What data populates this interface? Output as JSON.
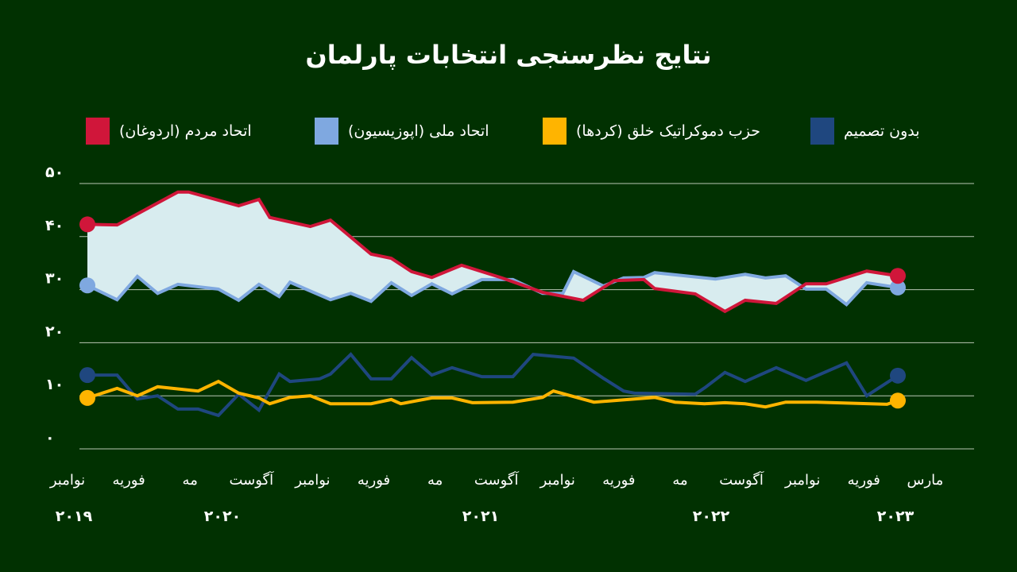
{
  "chart_data": {
    "type": "line",
    "title": "نتایج نظرسنجی انتخابات پارلمان",
    "xlabel": "",
    "ylabel": "",
    "ylim": [
      0,
      50
    ],
    "yticks": [
      "۰",
      "۱۰",
      "۲۰",
      "۳۰",
      "۴۰",
      "۵۰"
    ],
    "ytick_values": [
      0,
      10,
      20,
      30,
      40,
      50
    ],
    "grid": true,
    "legend_position": "top",
    "xticks": [
      "نوامبر",
      "فوریه",
      "مه",
      "آگوست",
      "نوامبر",
      "فوریه",
      "مه",
      "آگوست",
      "نوامبر",
      "فوریه",
      "مه",
      "آگوست",
      "نوامبر",
      "فوریه",
      "مارس"
    ],
    "years": [
      "۲۰۱۹",
      "۲۰۲۰",
      "۲۰۲۱",
      "۲۰۲۲",
      "۲۰۲۳"
    ],
    "fill_between": {
      "series": [
        "اتحاد مردم (اردوغان)",
        "اتحاد ملی (اپوزیسیون)"
      ],
      "color": "#d8ecef"
    },
    "series": [
      {
        "name": "اتحاد مردم (اردوغان)",
        "color": "#d0163a",
        "points": [
          [
            "2019-11-01",
            42.3
          ],
          [
            "2019-12-15",
            42.2
          ],
          [
            "2020-03-15",
            48.4
          ],
          [
            "2020-04-01",
            48.4
          ],
          [
            "2020-06-15",
            45.8
          ],
          [
            "2020-07-15",
            47.0
          ],
          [
            "2020-08-01",
            43.6
          ],
          [
            "2020-10-01",
            41.9
          ],
          [
            "2020-11-01",
            43.1
          ],
          [
            "2021-01-01",
            36.7
          ],
          [
            "2021-02-01",
            35.9
          ],
          [
            "2021-03-01",
            33.4
          ],
          [
            "2021-04-01",
            32.3
          ],
          [
            "2021-05-15",
            34.6
          ],
          [
            "2021-07-15",
            32.2
          ],
          [
            "2021-09-15",
            29.5
          ],
          [
            "2021-11-15",
            28.0
          ],
          [
            "2022-01-01",
            31.7
          ],
          [
            "2022-02-15",
            31.9
          ],
          [
            "2022-03-01",
            30.2
          ],
          [
            "2022-05-01",
            29.2
          ],
          [
            "2022-06-15",
            25.9
          ],
          [
            "2022-07-15",
            28.0
          ],
          [
            "2022-09-01",
            27.4
          ],
          [
            "2022-10-15",
            31.1
          ],
          [
            "2022-11-15",
            31.1
          ],
          [
            "2023-01-15",
            33.5
          ],
          [
            "2023-03-01",
            32.6
          ]
        ]
      },
      {
        "name": "اتحاد ملی (اپوزیسیون)",
        "color": "#7fa8e0",
        "points": [
          [
            "2019-11-01",
            30.8
          ],
          [
            "2019-12-15",
            28.1
          ],
          [
            "2020-01-15",
            32.5
          ],
          [
            "2020-02-15",
            29.3
          ],
          [
            "2020-03-15",
            31.0
          ],
          [
            "2020-05-15",
            30.1
          ],
          [
            "2020-06-15",
            28.0
          ],
          [
            "2020-07-15",
            31.0
          ],
          [
            "2020-08-15",
            28.7
          ],
          [
            "2020-09-01",
            31.4
          ],
          [
            "2020-11-01",
            28.1
          ],
          [
            "2020-12-01",
            29.3
          ],
          [
            "2021-01-01",
            27.8
          ],
          [
            "2021-02-01",
            31.3
          ],
          [
            "2021-03-01",
            28.9
          ],
          [
            "2021-04-01",
            31.1
          ],
          [
            "2021-05-01",
            29.2
          ],
          [
            "2021-06-15",
            31.9
          ],
          [
            "2021-08-01",
            31.9
          ],
          [
            "2021-09-15",
            29.3
          ],
          [
            "2021-10-15",
            29.3
          ],
          [
            "2021-11-01",
            33.4
          ],
          [
            "2021-12-15",
            30.7
          ],
          [
            "2022-01-15",
            32.2
          ],
          [
            "2022-02-15",
            32.3
          ],
          [
            "2022-03-01",
            33.2
          ],
          [
            "2022-06-01",
            32.0
          ],
          [
            "2022-07-15",
            32.9
          ],
          [
            "2022-08-15",
            32.2
          ],
          [
            "2022-09-15",
            32.6
          ],
          [
            "2022-10-15",
            30.1
          ],
          [
            "2022-11-15",
            30.1
          ],
          [
            "2022-12-15",
            27.2
          ],
          [
            "2023-01-15",
            31.3
          ],
          [
            "2023-03-01",
            30.4
          ]
        ]
      },
      {
        "name": "حزب دموکراتیک خلق (کردها)",
        "color": "#ffb400",
        "points": [
          [
            "2019-11-01",
            9.6
          ],
          [
            "2019-12-15",
            11.4
          ],
          [
            "2020-01-15",
            10.0
          ],
          [
            "2020-02-15",
            11.7
          ],
          [
            "2020-04-15",
            10.9
          ],
          [
            "2020-05-15",
            12.7
          ],
          [
            "2020-06-15",
            10.5
          ],
          [
            "2020-07-15",
            9.6
          ],
          [
            "2020-08-01",
            8.5
          ],
          [
            "2020-09-01",
            9.7
          ],
          [
            "2020-10-01",
            10.0
          ],
          [
            "2020-11-01",
            8.5
          ],
          [
            "2021-01-01",
            8.5
          ],
          [
            "2021-02-01",
            9.3
          ],
          [
            "2021-02-15",
            8.5
          ],
          [
            "2021-04-01",
            9.6
          ],
          [
            "2021-05-01",
            9.6
          ],
          [
            "2021-06-01",
            8.7
          ],
          [
            "2021-08-01",
            8.8
          ],
          [
            "2021-09-15",
            9.7
          ],
          [
            "2021-10-01",
            10.9
          ],
          [
            "2021-12-01",
            8.8
          ],
          [
            "2022-03-01",
            9.7
          ],
          [
            "2022-04-01",
            8.8
          ],
          [
            "2022-05-15",
            8.5
          ],
          [
            "2022-06-15",
            8.7
          ],
          [
            "2022-07-15",
            8.5
          ],
          [
            "2022-08-15",
            7.9
          ],
          [
            "2022-09-15",
            8.8
          ],
          [
            "2022-11-01",
            8.8
          ],
          [
            "2023-02-15",
            8.4
          ],
          [
            "2023-03-01",
            9.1
          ]
        ]
      },
      {
        "name": "بدون تصمیم",
        "color": "#1f477f",
        "points": [
          [
            "2019-11-01",
            13.9
          ],
          [
            "2019-12-15",
            13.9
          ],
          [
            "2020-01-15",
            9.4
          ],
          [
            "2020-02-15",
            10.0
          ],
          [
            "2020-03-15",
            7.5
          ],
          [
            "2020-04-15",
            7.5
          ],
          [
            "2020-05-15",
            6.3
          ],
          [
            "2020-06-15",
            10.3
          ],
          [
            "2020-07-15",
            7.3
          ],
          [
            "2020-08-15",
            14.1
          ],
          [
            "2020-09-01",
            12.7
          ],
          [
            "2020-10-15",
            13.2
          ],
          [
            "2020-11-01",
            14.1
          ],
          [
            "2020-12-01",
            17.8
          ],
          [
            "2021-01-01",
            13.2
          ],
          [
            "2021-02-01",
            13.2
          ],
          [
            "2021-03-01",
            17.2
          ],
          [
            "2021-04-01",
            13.9
          ],
          [
            "2021-05-01",
            15.3
          ],
          [
            "2021-06-15",
            13.6
          ],
          [
            "2021-08-01",
            13.6
          ],
          [
            "2021-09-01",
            17.8
          ],
          [
            "2021-11-01",
            17.1
          ],
          [
            "2021-12-15",
            13.3
          ],
          [
            "2022-01-15",
            10.9
          ],
          [
            "2022-02-01",
            10.5
          ],
          [
            "2022-05-01",
            10.3
          ],
          [
            "2022-05-15",
            11.5
          ],
          [
            "2022-06-15",
            14.4
          ],
          [
            "2022-07-15",
            12.7
          ],
          [
            "2022-09-01",
            15.3
          ],
          [
            "2022-10-15",
            12.9
          ],
          [
            "2022-12-15",
            16.2
          ],
          [
            "2023-01-15",
            10.0
          ],
          [
            "2023-03-01",
            13.8
          ]
        ]
      }
    ]
  },
  "legend": {
    "items": [
      {
        "label": "اتحاد مردم (اردوغان)",
        "color": "#d0163a"
      },
      {
        "label": "اتحاد ملی (اپوزیسیون)",
        "color": "#7fa8e0"
      },
      {
        "label": "حزب دموکراتیک خلق (کردها)",
        "color": "#ffb400"
      },
      {
        "label": "بدون تصمیم",
        "color": "#1f477f"
      }
    ]
  }
}
